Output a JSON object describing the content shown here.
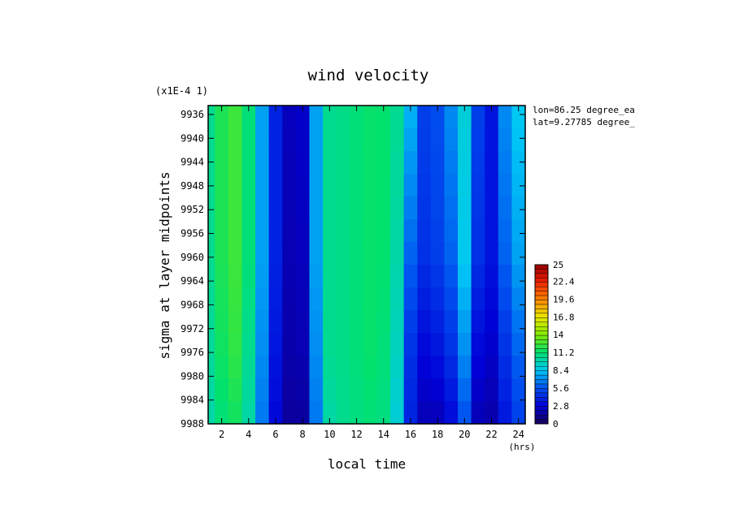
{
  "chart_data": {
    "type": "heatmap",
    "title": "wind velocity",
    "xlabel": "local time",
    "x_unit": "(hrs)",
    "ylabel": "sigma at layer midpoints",
    "y_scale_label": "(x1E-4 1)",
    "annotation": [
      "lon=86.25 degree_ea",
      "lat=9.27785 degree_"
    ],
    "xlim": [
      1,
      24.5
    ],
    "ylim": [
      9988,
      9934.5
    ],
    "x_ticks": [
      "2",
      "4",
      "6",
      "8",
      "10",
      "12",
      "14",
      "16",
      "18",
      "20",
      "22",
      "24"
    ],
    "y_ticks": [
      "9936",
      "9940",
      "9944",
      "9948",
      "9952",
      "9956",
      "9960",
      "9964",
      "9968",
      "9972",
      "9976",
      "9980",
      "9984",
      "9988"
    ],
    "colorbar": {
      "min": 0,
      "max": 25,
      "ticks": [
        "25",
        "22.4",
        "19.6",
        "16.8",
        "14",
        "11.2",
        "8.4",
        "5.6",
        "2.8",
        "0"
      ]
    },
    "hours": [
      1,
      2,
      3,
      4,
      5,
      6,
      7,
      8,
      9,
      10,
      11,
      12,
      13,
      14,
      15,
      16,
      17,
      18,
      19,
      20,
      21,
      22,
      23,
      24
    ],
    "sigma_levels": [
      9934.5,
      9960,
      9976,
      9988
    ],
    "values": [
      [
        10.5,
        11.8,
        12.5,
        11.0,
        7.5,
        4.0,
        2.2,
        2.5,
        7.5,
        10.5,
        10.7,
        11.0,
        11.3,
        11.2,
        10.5,
        8.0,
        5.0,
        5.5,
        7.0,
        9.0,
        5.0,
        3.5,
        7.0,
        8.5
      ],
      [
        10.5,
        11.8,
        12.5,
        11.0,
        7.5,
        4.0,
        2.0,
        2.2,
        7.5,
        10.5,
        10.7,
        11.0,
        11.3,
        11.2,
        10.0,
        6.0,
        4.5,
        5.0,
        6.0,
        8.5,
        4.5,
        3.5,
        6.0,
        7.5
      ],
      [
        10.3,
        11.5,
        12.2,
        10.5,
        7.0,
        3.5,
        1.8,
        2.0,
        7.0,
        10.5,
        10.7,
        11.0,
        11.3,
        11.0,
        9.5,
        4.5,
        3.0,
        3.5,
        4.5,
        7.0,
        3.0,
        2.5,
        4.5,
        6.0
      ],
      [
        10.0,
        11.0,
        11.5,
        10.0,
        6.5,
        3.0,
        1.5,
        1.5,
        6.5,
        10.0,
        10.5,
        10.8,
        11.0,
        10.8,
        9.0,
        4.0,
        2.0,
        2.0,
        3.0,
        5.5,
        2.0,
        1.8,
        3.5,
        5.0
      ]
    ]
  }
}
